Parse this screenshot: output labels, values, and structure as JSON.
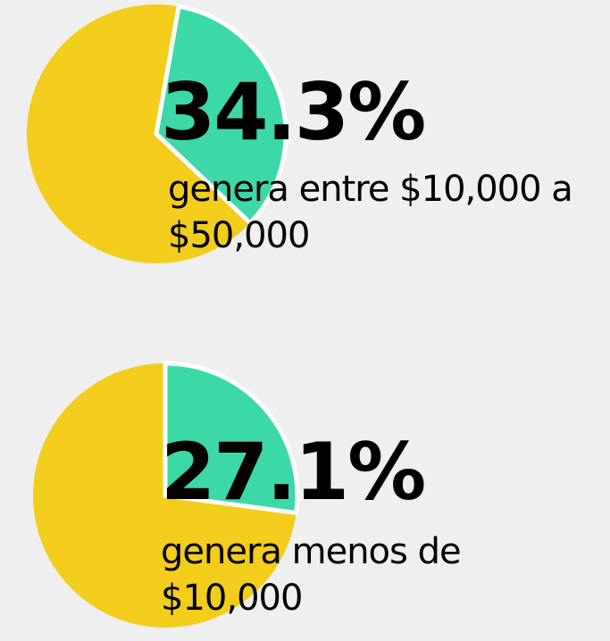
{
  "chart_data": [
    {
      "type": "pie",
      "values": [
        34.3
      ],
      "value_labels": [
        "34.3%"
      ],
      "subtitle": "genera entre $10,000 a $50,000",
      "color": "#3dd8a8",
      "rest_color": "#f2cd1c"
    },
    {
      "type": "pie",
      "values": [
        27.1
      ],
      "value_labels": [
        "27.1%"
      ],
      "subtitle": "genera menos de $10,000",
      "color": "#3dd8a8",
      "rest_color": "#f2cd1c"
    }
  ]
}
